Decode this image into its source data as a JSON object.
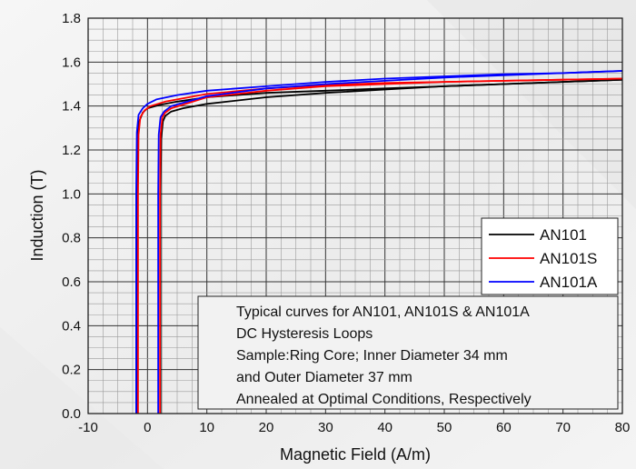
{
  "chart_data": {
    "type": "line",
    "title": "",
    "xlabel": "Magnetic Field (A/m)",
    "ylabel": "Induction (T)",
    "xlim": [
      -10,
      80
    ],
    "ylim": [
      0,
      1.8
    ],
    "x_ticks": [
      "-10",
      "0",
      "10",
      "20",
      "30",
      "40",
      "50",
      "60",
      "70",
      "80"
    ],
    "y_ticks": [
      "0.0",
      "0.2",
      "0.4",
      "0.6",
      "0.8",
      "1.0",
      "1.2",
      "1.4",
      "1.6",
      "1.8"
    ],
    "grid": true,
    "legend_position": "right",
    "series": [
      {
        "name": "AN101",
        "color": "#000000",
        "branches": [
          {
            "x": [
              -1.8,
              -1.8,
              -1.7,
              -1.4,
              -0.8,
              0,
              2,
              5,
              10,
              20,
              30,
              40,
              50,
              60,
              70,
              80
            ],
            "y": [
              0,
              1.0,
              1.25,
              1.33,
              1.37,
              1.39,
              1.405,
              1.42,
              1.44,
              1.46,
              1.47,
              1.48,
              1.49,
              1.5,
              1.51,
              1.52
            ]
          },
          {
            "x": [
              2.2,
              2.2,
              2.3,
              2.6,
              3.0,
              4,
              6,
              10,
              20,
              30,
              40,
              50,
              60,
              70,
              80
            ],
            "y": [
              0,
              1.0,
              1.25,
              1.33,
              1.355,
              1.375,
              1.39,
              1.41,
              1.44,
              1.46,
              1.475,
              1.49,
              1.5,
              1.51,
              1.52
            ]
          }
        ]
      },
      {
        "name": "AN101S",
        "color": "#ff0000",
        "branches": [
          {
            "x": [
              -1.6,
              -1.6,
              -1.5,
              -1.2,
              -0.5,
              0.5,
              3,
              10,
              20,
              30,
              40,
              50,
              60,
              70,
              80
            ],
            "y": [
              0,
              1.0,
              1.27,
              1.35,
              1.38,
              1.4,
              1.42,
              1.455,
              1.48,
              1.495,
              1.505,
              1.51,
              1.515,
              1.52,
              1.525
            ]
          },
          {
            "x": [
              2.1,
              2.1,
              2.2,
              2.5,
              3.0,
              4,
              10,
              20,
              30,
              40,
              50,
              60,
              70,
              80
            ],
            "y": [
              0,
              1.0,
              1.27,
              1.35,
              1.37,
              1.39,
              1.44,
              1.47,
              1.49,
              1.5,
              1.51,
              1.515,
              1.52,
              1.525
            ]
          }
        ]
      },
      {
        "name": "AN101A",
        "color": "#0000ff",
        "branches": [
          {
            "x": [
              -1.9,
              -1.9,
              -1.8,
              -1.5,
              -0.8,
              0,
              1.5,
              5,
              10,
              20,
              30,
              40,
              50,
              60,
              70,
              80
            ],
            "y": [
              0,
              1.0,
              1.28,
              1.36,
              1.39,
              1.41,
              1.43,
              1.45,
              1.47,
              1.49,
              1.51,
              1.525,
              1.535,
              1.545,
              1.55,
              1.56
            ]
          },
          {
            "x": [
              1.8,
              1.8,
              1.9,
              2.2,
              2.8,
              4,
              10,
              20,
              30,
              40,
              50,
              60,
              70,
              80
            ],
            "y": [
              0,
              1.0,
              1.27,
              1.35,
              1.375,
              1.4,
              1.445,
              1.48,
              1.5,
              1.515,
              1.53,
              1.54,
              1.55,
              1.56
            ]
          }
        ]
      }
    ],
    "annotation_lines": [
      "Typical curves for AN101, AN101S & AN101A",
      "DC Hysteresis Loops",
      "Sample:Ring Core; Inner Diameter 34 mm",
      "and Outer Diameter 37 mm",
      "Annealed at Optimal Conditions, Respectively"
    ]
  }
}
